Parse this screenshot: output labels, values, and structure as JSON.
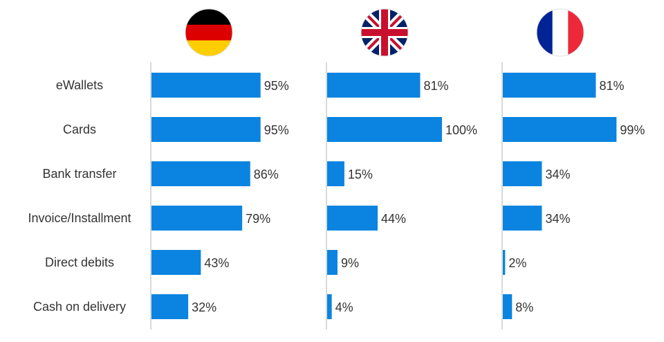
{
  "chart_data": {
    "type": "bar",
    "orientation": "horizontal",
    "categories": [
      "eWallets",
      "Cards",
      "Bank transfer",
      "Invoice/Installment",
      "Direct debits",
      "Cash on delivery"
    ],
    "panels": [
      {
        "flag": "germany-flag-icon",
        "values": [
          95,
          95,
          86,
          79,
          43,
          32
        ],
        "labels": [
          "95%",
          "95%",
          "86%",
          "79%",
          "43%",
          "32%"
        ]
      },
      {
        "flag": "uk-flag-icon",
        "values": [
          81,
          100,
          15,
          44,
          9,
          4
        ],
        "labels": [
          "81%",
          "100%",
          "15%",
          "44%",
          "9%",
          "4%"
        ]
      },
      {
        "flag": "france-flag-icon",
        "values": [
          81,
          99,
          34,
          34,
          2,
          8
        ],
        "labels": [
          "81%",
          "99%",
          "34%",
          "34%",
          "2%",
          "8%"
        ]
      }
    ],
    "xlim": [
      0,
      100
    ],
    "grid": false,
    "bar_color": "#0a84e0",
    "axis_color": "#d9d9d9"
  }
}
